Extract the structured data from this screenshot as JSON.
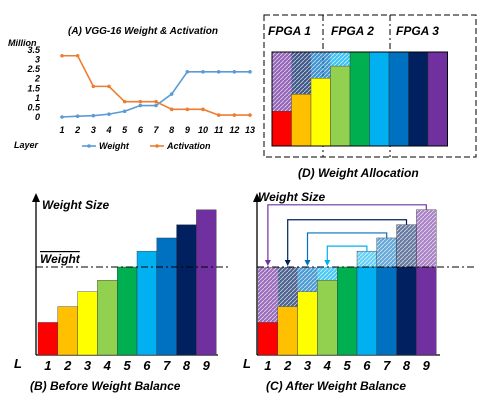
{
  "chart_data": [
    {
      "type": "line",
      "title": "(A) VGG-16 Weight & Activation",
      "unit_label": "Million",
      "xlabel": "Layer",
      "ylim": [
        0,
        3.5
      ],
      "yticks": [
        "0",
        "0.5",
        "1",
        "1.5",
        "2",
        "2.5",
        "3",
        "3.5"
      ],
      "x": [
        1,
        2,
        3,
        4,
        5,
        6,
        7,
        8,
        9,
        10,
        11,
        12,
        13
      ],
      "series": [
        {
          "name": "Weight",
          "color": "#5b9bd5",
          "values": [
            0.0,
            0.04,
            0.07,
            0.15,
            0.3,
            0.6,
            0.6,
            1.2,
            2.36,
            2.36,
            2.36,
            2.36,
            2.36
          ]
        },
        {
          "name": "Activation",
          "color": "#ed7d31",
          "values": [
            3.2,
            3.2,
            1.6,
            1.6,
            0.8,
            0.8,
            0.8,
            0.4,
            0.4,
            0.4,
            0.1,
            0.1,
            0.1
          ]
        }
      ]
    },
    {
      "type": "bar",
      "title": "(B) Before Weight Balance",
      "ylabel": "Weight Size",
      "xlabel": "L",
      "avg_label": "Weight",
      "avg_value": 100,
      "categories": [
        "1",
        "2",
        "3",
        "4",
        "5",
        "6",
        "7",
        "8",
        "9"
      ],
      "values": [
        37,
        55,
        72,
        85,
        100,
        118,
        133,
        148,
        165
      ],
      "colors": [
        "#ff0000",
        "#ffc000",
        "#ffff00",
        "#92d050",
        "#00b050",
        "#00b0f0",
        "#0070c0",
        "#002060",
        "#7030a0"
      ]
    },
    {
      "type": "bar",
      "title": "(C) After Weight Balance",
      "ylabel": "Weight Size",
      "xlabel": "L",
      "categories": [
        "1",
        "2",
        "3",
        "4",
        "5",
        "6",
        "7",
        "8",
        "9"
      ],
      "values": [
        100,
        100,
        100,
        100,
        100,
        100,
        100,
        100,
        100
      ],
      "base_values": [
        37,
        55,
        72,
        85,
        100,
        100,
        100,
        100,
        100
      ],
      "overflow_values": [
        0,
        0,
        0,
        0,
        0,
        18,
        33,
        48,
        65
      ],
      "moves": [
        [
          9,
          1
        ],
        [
          8,
          2
        ],
        [
          7,
          3
        ],
        [
          6,
          4
        ]
      ],
      "colors": [
        "#ff0000",
        "#ffc000",
        "#ffff00",
        "#92d050",
        "#00b050",
        "#00b0f0",
        "#0070c0",
        "#002060",
        "#7030a0"
      ]
    },
    {
      "type": "bar",
      "title": "(D) Weight Allocation",
      "groups": [
        "FPGA 1",
        "FPGA 2",
        "FPGA 3"
      ],
      "categories": [
        "1",
        "2",
        "3",
        "4",
        "5",
        "6",
        "7",
        "8",
        "9"
      ],
      "values": [
        100,
        100,
        100,
        100,
        100,
        100,
        100,
        100,
        100
      ],
      "base_values": [
        37,
        55,
        72,
        85,
        100,
        100,
        100,
        100,
        100
      ],
      "colors": [
        "#ff0000",
        "#ffc000",
        "#ffff00",
        "#92d050",
        "#00b050",
        "#00b0f0",
        "#0070c0",
        "#002060",
        "#7030a0"
      ]
    }
  ]
}
